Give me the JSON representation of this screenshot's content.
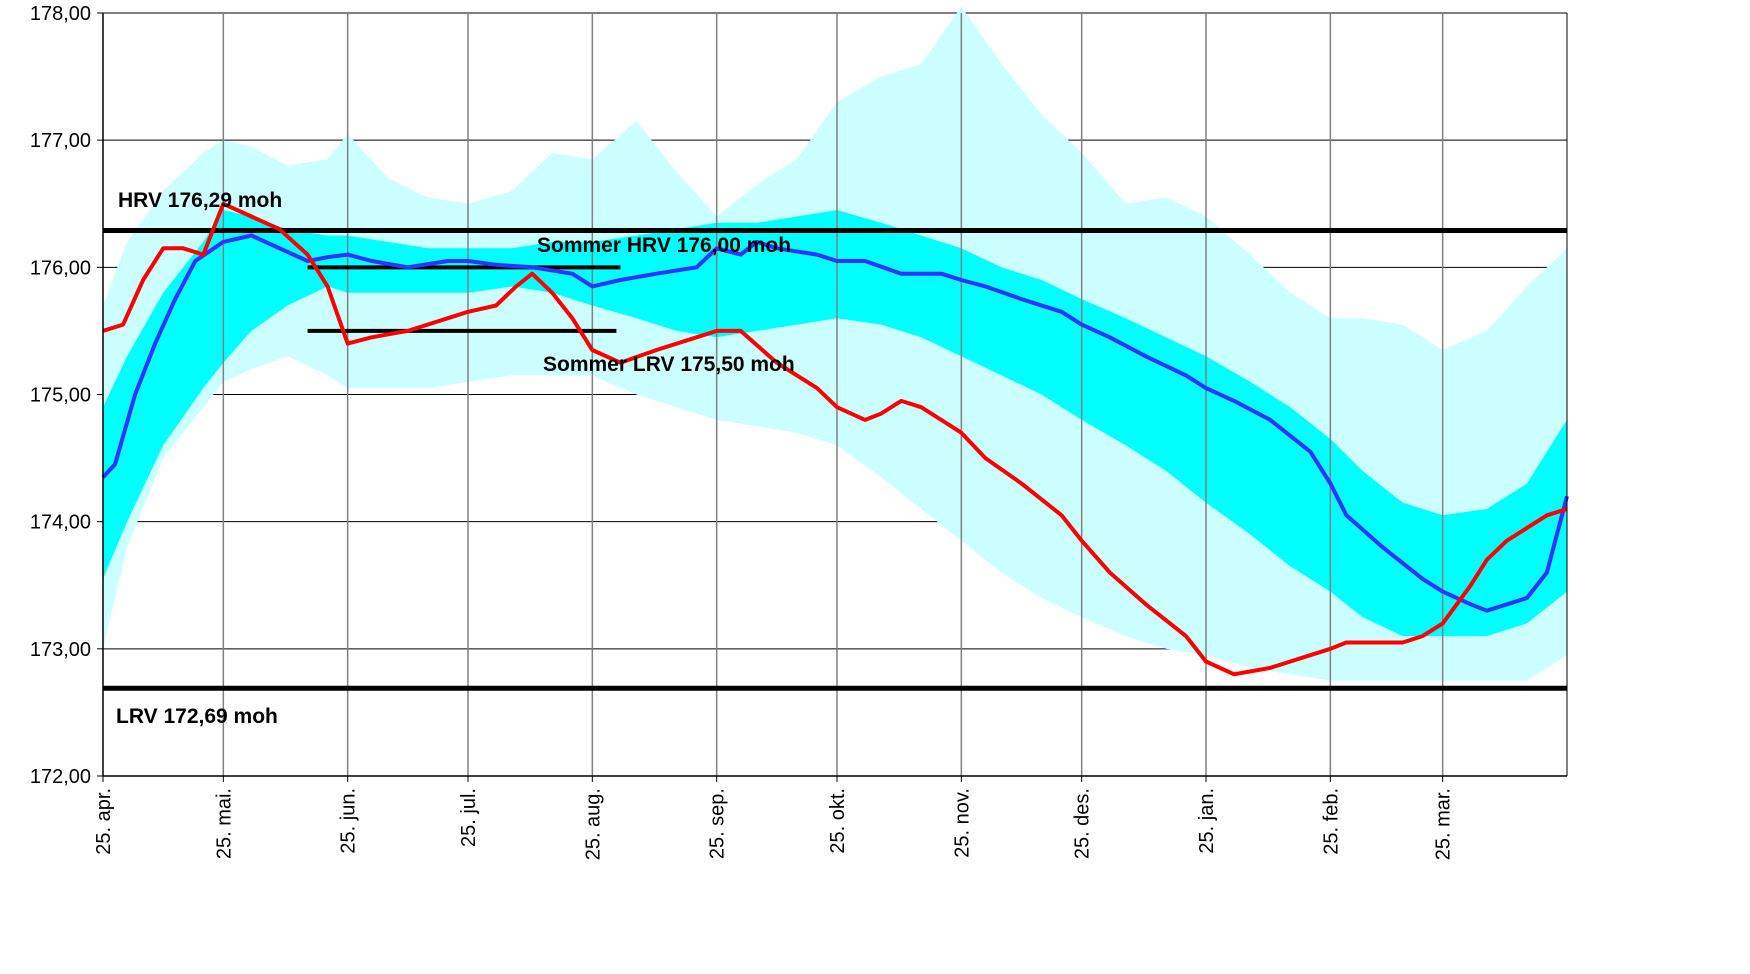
{
  "chart_data": {
    "type": "area",
    "ylim": [
      172,
      178
    ],
    "yticks": [
      "172,00",
      "173,00",
      "174,00",
      "175,00",
      "176,00",
      "177,00",
      "178,00"
    ],
    "x_start": "2014-04-25",
    "x_end": "2015-04-25",
    "xticks": [
      {
        "date": "2014-04-25",
        "label": "25. apr."
      },
      {
        "date": "2014-05-25",
        "label": "25. mai."
      },
      {
        "date": "2014-06-25",
        "label": "25. jun."
      },
      {
        "date": "2014-07-25",
        "label": "25. jul."
      },
      {
        "date": "2014-08-25",
        "label": "25. aug."
      },
      {
        "date": "2014-09-25",
        "label": "25. sep."
      },
      {
        "date": "2014-10-25",
        "label": "25. okt."
      },
      {
        "date": "2014-11-25",
        "label": "25. nov."
      },
      {
        "date": "2014-12-25",
        "label": "25. des."
      },
      {
        "date": "2015-01-25",
        "label": "25. jan."
      },
      {
        "date": "2015-02-25",
        "label": "25. feb."
      },
      {
        "date": "2015-03-25",
        "label": "25. mar."
      }
    ],
    "grid": true,
    "colors": {
      "outer_band": "#ccffff",
      "inner_band": "#00ffff",
      "median": "#3333ff",
      "current": "#ff0000",
      "reference": "#000000",
      "grid": "#808080"
    },
    "reference_lines": [
      {
        "label": "HRV  176,29 moh",
        "value": 176.29,
        "start": "2014-04-25",
        "end": "2015-04-25"
      },
      {
        "label": "LRV  172,69 moh",
        "value": 172.69,
        "start": "2014-04-25",
        "end": "2015-04-25"
      },
      {
        "label": "Sommer HRV 176,00 moh",
        "value": 176.0,
        "start": "2014-06-15",
        "end": "2014-09-01"
      },
      {
        "label": "Sommer LRV 175,50 moh",
        "value": 175.5,
        "start": "2014-06-15",
        "end": "2014-08-31"
      }
    ],
    "outer_band": {
      "dates": [
        "2014-04-25",
        "2014-05-01",
        "2014-05-10",
        "2014-05-20",
        "2014-05-25",
        "2014-06-01",
        "2014-06-10",
        "2014-06-20",
        "2014-06-25",
        "2014-07-05",
        "2014-07-15",
        "2014-07-25",
        "2014-08-05",
        "2014-08-15",
        "2014-08-25",
        "2014-09-05",
        "2014-09-15",
        "2014-09-25",
        "2014-10-05",
        "2014-10-15",
        "2014-10-25",
        "2014-11-05",
        "2014-11-15",
        "2014-11-25",
        "2014-12-05",
        "2014-12-15",
        "2014-12-25",
        "2015-01-05",
        "2015-01-15",
        "2015-01-25",
        "2015-02-05",
        "2015-02-15",
        "2015-02-25",
        "2015-03-05",
        "2015-03-15",
        "2015-03-25",
        "2015-04-05",
        "2015-04-15",
        "2015-04-25"
      ],
      "upper": [
        175.7,
        176.2,
        176.6,
        176.9,
        177.0,
        176.95,
        176.8,
        176.85,
        177.05,
        176.7,
        176.55,
        176.5,
        176.6,
        176.9,
        176.85,
        177.15,
        176.75,
        176.4,
        176.65,
        176.85,
        177.3,
        177.5,
        177.6,
        178.05,
        177.6,
        177.2,
        176.9,
        176.5,
        176.55,
        176.4,
        176.1,
        175.8,
        175.6,
        175.6,
        175.55,
        175.35,
        175.5,
        175.85,
        176.15
      ],
      "lower": [
        173.0,
        173.8,
        174.5,
        174.9,
        175.1,
        175.2,
        175.3,
        175.15,
        175.05,
        175.05,
        175.05,
        175.1,
        175.15,
        175.15,
        175.15,
        175.0,
        174.9,
        174.8,
        174.75,
        174.7,
        174.6,
        174.35,
        174.1,
        173.85,
        173.6,
        173.4,
        173.25,
        173.1,
        173.0,
        172.95,
        172.85,
        172.8,
        172.75,
        172.75,
        172.75,
        172.75,
        172.75,
        172.75,
        172.95
      ]
    },
    "inner_band": {
      "dates": [
        "2014-04-25",
        "2014-05-01",
        "2014-05-10",
        "2014-05-20",
        "2014-05-25",
        "2014-06-01",
        "2014-06-10",
        "2014-06-20",
        "2014-06-25",
        "2014-07-05",
        "2014-07-15",
        "2014-07-25",
        "2014-08-05",
        "2014-08-15",
        "2014-08-25",
        "2014-09-05",
        "2014-09-15",
        "2014-09-25",
        "2014-10-05",
        "2014-10-15",
        "2014-10-25",
        "2014-11-05",
        "2014-11-15",
        "2014-11-25",
        "2014-12-05",
        "2014-12-15",
        "2014-12-25",
        "2015-01-05",
        "2015-01-15",
        "2015-01-25",
        "2015-02-05",
        "2015-02-15",
        "2015-02-25",
        "2015-03-05",
        "2015-03-15",
        "2015-03-25",
        "2015-04-05",
        "2015-04-15",
        "2015-04-25"
      ],
      "upper": [
        174.9,
        175.3,
        175.8,
        176.2,
        176.45,
        176.4,
        176.3,
        176.25,
        176.25,
        176.2,
        176.15,
        176.15,
        176.15,
        176.2,
        176.2,
        176.25,
        176.3,
        176.35,
        176.35,
        176.4,
        176.45,
        176.35,
        176.25,
        176.15,
        176.0,
        175.9,
        175.75,
        175.6,
        175.45,
        175.3,
        175.1,
        174.9,
        174.65,
        174.4,
        174.15,
        174.05,
        174.1,
        174.3,
        174.8
      ],
      "lower": [
        173.55,
        174.0,
        174.6,
        175.05,
        175.25,
        175.5,
        175.7,
        175.85,
        175.8,
        175.8,
        175.8,
        175.8,
        175.85,
        175.8,
        175.7,
        175.6,
        175.5,
        175.45,
        175.5,
        175.55,
        175.6,
        175.55,
        175.45,
        175.3,
        175.15,
        175.0,
        174.8,
        174.6,
        174.4,
        174.15,
        173.9,
        173.65,
        173.45,
        173.25,
        173.1,
        173.1,
        173.1,
        173.2,
        173.45
      ]
    },
    "series": [
      {
        "color": "#3333ff",
        "dates": [
          "2014-04-25",
          "2014-04-28",
          "2014-05-03",
          "2014-05-08",
          "2014-05-13",
          "2014-05-18",
          "2014-05-25",
          "2014-06-01",
          "2014-06-08",
          "2014-06-15",
          "2014-06-20",
          "2014-06-25",
          "2014-07-01",
          "2014-07-10",
          "2014-07-20",
          "2014-07-25",
          "2014-08-01",
          "2014-08-10",
          "2014-08-20",
          "2014-08-25",
          "2014-09-01",
          "2014-09-10",
          "2014-09-20",
          "2014-09-25",
          "2014-10-01",
          "2014-10-05",
          "2014-10-10",
          "2014-10-20",
          "2014-10-25",
          "2014-11-01",
          "2014-11-10",
          "2014-11-20",
          "2014-11-25",
          "2014-12-01",
          "2014-12-10",
          "2014-12-20",
          "2014-12-25",
          "2015-01-01",
          "2015-01-10",
          "2015-01-20",
          "2015-01-25",
          "2015-02-01",
          "2015-02-10",
          "2015-02-20",
          "2015-02-25",
          "2015-03-01",
          "2015-03-10",
          "2015-03-20",
          "2015-03-25",
          "2015-04-01",
          "2015-04-05",
          "2015-04-15",
          "2015-04-20",
          "2015-04-25"
        ],
        "values": [
          174.35,
          174.45,
          175.0,
          175.4,
          175.75,
          176.05,
          176.2,
          176.25,
          176.15,
          176.05,
          176.08,
          176.1,
          176.05,
          176.0,
          176.05,
          176.05,
          176.02,
          176.0,
          175.95,
          175.85,
          175.9,
          175.95,
          176.0,
          176.15,
          176.1,
          176.2,
          176.15,
          176.1,
          176.05,
          176.05,
          175.95,
          175.95,
          175.9,
          175.85,
          175.75,
          175.65,
          175.55,
          175.45,
          175.3,
          175.15,
          175.05,
          174.95,
          174.8,
          174.55,
          174.3,
          174.05,
          173.8,
          173.55,
          173.45,
          173.35,
          173.3,
          173.4,
          173.6,
          174.2
        ]
      },
      {
        "color": "#ff0000",
        "dates": [
          "2014-04-25",
          "2014-04-30",
          "2014-05-05",
          "2014-05-10",
          "2014-05-15",
          "2014-05-20",
          "2014-05-25",
          "2014-06-01",
          "2014-06-08",
          "2014-06-15",
          "2014-06-20",
          "2014-06-25",
          "2014-07-01",
          "2014-07-10",
          "2014-07-20",
          "2014-07-25",
          "2014-08-01",
          "2014-08-06",
          "2014-08-10",
          "2014-08-15",
          "2014-08-20",
          "2014-08-25",
          "2014-09-01",
          "2014-09-10",
          "2014-09-20",
          "2014-09-25",
          "2014-10-01",
          "2014-10-10",
          "2014-10-15",
          "2014-10-20",
          "2014-10-25",
          "2014-11-01",
          "2014-11-05",
          "2014-11-10",
          "2014-11-15",
          "2014-11-20",
          "2014-11-25",
          "2014-12-01",
          "2014-12-10",
          "2014-12-20",
          "2014-12-25",
          "2015-01-01",
          "2015-01-10",
          "2015-01-20",
          "2015-01-25",
          "2015-02-01",
          "2015-02-10",
          "2015-02-20",
          "2015-02-25",
          "2015-03-01",
          "2015-03-10",
          "2015-03-15",
          "2015-03-20",
          "2015-03-25",
          "2015-04-01",
          "2015-04-05",
          "2015-04-10",
          "2015-04-15",
          "2015-04-20",
          "2015-04-25"
        ],
        "values": [
          175.5,
          175.55,
          175.9,
          176.15,
          176.15,
          176.1,
          176.5,
          176.4,
          176.3,
          176.1,
          175.85,
          175.4,
          175.45,
          175.5,
          175.6,
          175.65,
          175.7,
          175.85,
          175.95,
          175.8,
          175.6,
          175.35,
          175.25,
          175.35,
          175.45,
          175.5,
          175.5,
          175.25,
          175.15,
          175.05,
          174.9,
          174.8,
          174.85,
          174.95,
          174.9,
          174.8,
          174.7,
          174.5,
          174.3,
          174.05,
          173.85,
          173.6,
          173.35,
          173.1,
          172.9,
          172.8,
          172.85,
          172.95,
          173.0,
          173.05,
          173.05,
          173.05,
          173.1,
          173.2,
          173.5,
          173.7,
          173.85,
          173.95,
          174.05,
          174.1
        ]
      }
    ]
  }
}
